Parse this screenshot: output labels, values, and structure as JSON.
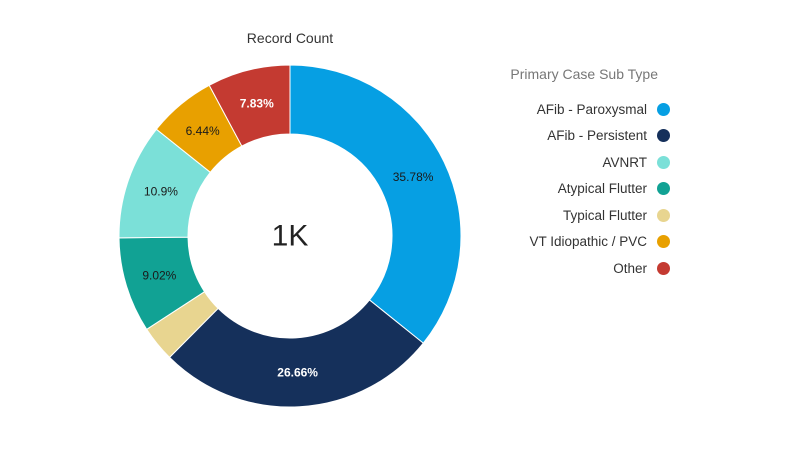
{
  "chart_data": {
    "type": "pie",
    "donut": true,
    "title": "Record Count",
    "center_label": "1K",
    "legend_title": "Primary Case Sub Type",
    "legend_position": "right",
    "series": [
      {
        "name": "AFib - Paroxysmal",
        "value": 35.78,
        "label": "35.78%",
        "color": "#069fe3"
      },
      {
        "name": "AFib - Persistent",
        "value": 26.66,
        "label": "26.66%",
        "color": "#15305b"
      },
      {
        "name": "Typical Flutter",
        "value": 3.37,
        "label": "",
        "color": "#e8d590"
      },
      {
        "name": "Atypical Flutter",
        "value": 9.02,
        "label": "9.02%",
        "color": "#11a294"
      },
      {
        "name": "AVNRT",
        "value": 10.9,
        "label": "10.9%",
        "color": "#7be0d8"
      },
      {
        "name": "VT Idiopathic / PVC",
        "value": 6.44,
        "label": "6.44%",
        "color": "#e8a000"
      },
      {
        "name": "Other",
        "value": 7.83,
        "label": "7.83%",
        "color": "#c43a31"
      }
    ],
    "legend_order": [
      "AFib - Paroxysmal",
      "AFib - Persistent",
      "AVNRT",
      "Atypical Flutter",
      "Typical Flutter",
      "VT Idiopathic / PVC",
      "Other"
    ]
  }
}
